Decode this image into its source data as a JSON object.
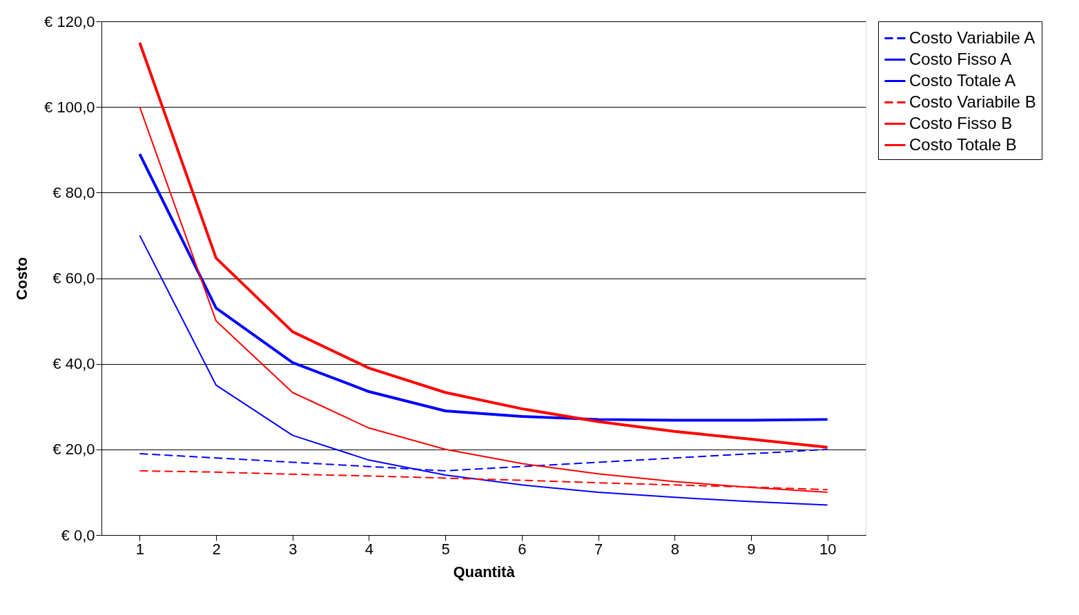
{
  "chart_data": {
    "type": "line",
    "xlabel": "Quantità",
    "ylabel": "Costo",
    "categories": [
      "1",
      "2",
      "3",
      "4",
      "5",
      "6",
      "7",
      "8",
      "9",
      "10"
    ],
    "series": [
      {
        "name": "Costo Variabile A",
        "color": "#0000ff",
        "line_style": "dashed",
        "values": [
          19,
          18,
          17,
          16,
          15,
          16,
          17,
          18,
          19,
          20
        ]
      },
      {
        "name": "Costo Fisso A",
        "color": "#0000ff",
        "line_style": "solid",
        "values": [
          70,
          35,
          23.3,
          17.5,
          14,
          11.7,
          10,
          8.8,
          7.8,
          7
        ]
      },
      {
        "name": "Costo Totale A",
        "color": "#0000ff",
        "line_style": "solid",
        "values": [
          89,
          53,
          40.3,
          33.5,
          29,
          27.7,
          27,
          26.8,
          26.8,
          27
        ]
      },
      {
        "name": "Costo Variabile B",
        "color": "#ff0000",
        "line_style": "dashed",
        "values": [
          15,
          14.7,
          14.2,
          13.8,
          13.3,
          12.8,
          12.2,
          11.7,
          11.2,
          10.6
        ]
      },
      {
        "name": "Costo Fisso B",
        "color": "#ff0000",
        "line_style": "solid",
        "values": [
          100,
          50,
          33.3,
          25,
          20,
          16.7,
          14.3,
          12.5,
          11.1,
          10
        ]
      },
      {
        "name": "Costo Totale B",
        "color": "#ff0000",
        "line_style": "solid",
        "values": [
          115,
          64.7,
          47.5,
          39,
          33.3,
          29.5,
          26.5,
          24.2,
          22.4,
          20.5
        ]
      }
    ],
    "ylim": [
      0,
      120
    ],
    "yticks": [
      {
        "value": 0,
        "label": "€ 0,0"
      },
      {
        "value": 20,
        "label": "€ 20,0"
      },
      {
        "value": 40,
        "label": "€ 40,0"
      },
      {
        "value": 60,
        "label": "€ 60,0"
      },
      {
        "value": 80,
        "label": "€ 80,0"
      },
      {
        "value": 100,
        "label": "€ 100,0"
      },
      {
        "value": 120,
        "label": "€ 120,0"
      }
    ],
    "grid": "y",
    "legend": "right",
    "marker": "none"
  }
}
